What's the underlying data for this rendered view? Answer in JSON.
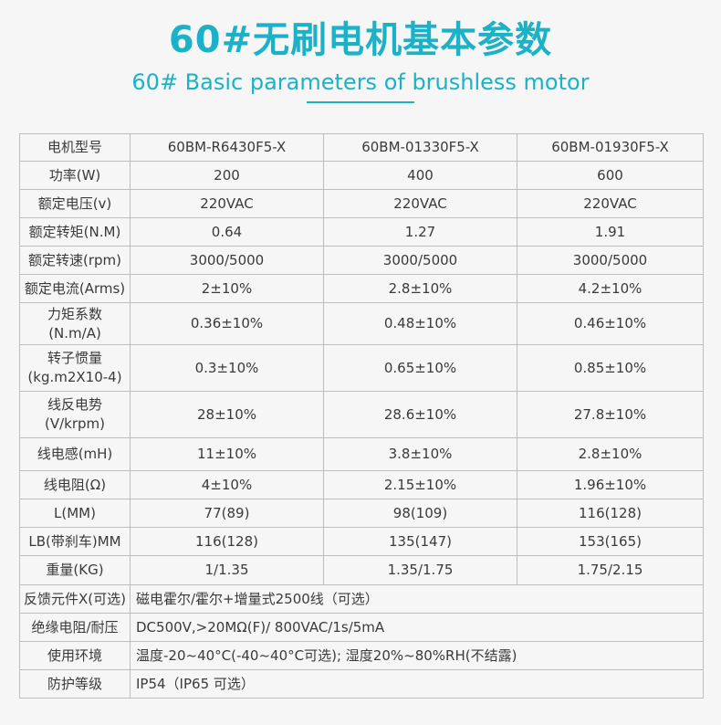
{
  "header": {
    "title_zh": "60#无刷电机基本参数",
    "title_en": "60# Basic parameters of brushless motor"
  },
  "colors": {
    "accent": "#1bb2c8",
    "border": "#bdbdbd",
    "background": "#f6f6f6"
  },
  "table": {
    "header_label": "电机型号",
    "models": [
      "60BM-R6430F5-X",
      "60BM-01330F5-X",
      "60BM-01930F5-X"
    ],
    "rows": [
      {
        "label": "功率(W)",
        "values": [
          "200",
          "400",
          "600"
        ]
      },
      {
        "label": "额定电压(v)",
        "values": [
          "220VAC",
          "220VAC",
          "220VAC"
        ]
      },
      {
        "label": "额定转矩(N.M)",
        "values": [
          "0.64",
          "1.27",
          "1.91"
        ]
      },
      {
        "label": "额定转速(rpm)",
        "values": [
          "3000/5000",
          "3000/5000",
          "3000/5000"
        ]
      },
      {
        "label": "额定电流(Arms)",
        "values": [
          "2±10%",
          "2.8±10%",
          "4.2±10%"
        ]
      },
      {
        "label": "力矩系数",
        "label2": "(N.m/A)",
        "values": [
          "0.36±10%",
          "0.48±10%",
          "0.46±10%"
        ]
      },
      {
        "label": "转子惯量",
        "label2": "(kg.m2X10-4)",
        "values": [
          "0.3±10%",
          "0.65±10%",
          "0.85±10%"
        ]
      },
      {
        "label": "线反电势",
        "label2": "(V/krpm)",
        "values": [
          "28±10%",
          "28.6±10%",
          "27.8±10%"
        ]
      },
      {
        "label": "线电感(mH)",
        "values": [
          "11±10%",
          "3.8±10%",
          "2.8±10%"
        ]
      },
      {
        "label": "线电阻(Ω)",
        "values": [
          "4±10%",
          "2.15±10%",
          "1.96±10%"
        ]
      },
      {
        "label": "L(MM)",
        "values": [
          "77(89)",
          "98(109)",
          "116(128)"
        ]
      },
      {
        "label": "LB(带刹车)MM",
        "values": [
          "116(128)",
          "135(147)",
          "153(165)"
        ]
      },
      {
        "label": "重量(KG)",
        "values": [
          "1/1.35",
          "1.35/1.75",
          "1.75/2.15"
        ]
      }
    ],
    "span_rows": [
      {
        "label": "反馈元件X(可选)",
        "value": "磁电霍尔/霍尔+增量式2500线（可选）"
      },
      {
        "label": "绝缘电阻/耐压",
        "value": "DC500V,>20MΩ(F)/ 800VAC/1s/5mA"
      },
      {
        "label": "使用环境",
        "value": "温度-20~40°C(-40~40°C可选); 湿度20%~80%RH(不结露)"
      },
      {
        "label": "防护等级",
        "value": "IP54（IP65 可选）"
      }
    ]
  }
}
